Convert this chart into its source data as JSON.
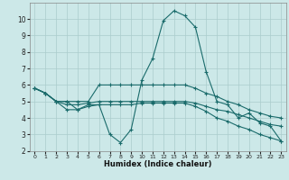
{
  "xlabel": "Humidex (Indice chaleur)",
  "xlim": [
    -0.5,
    23.5
  ],
  "ylim": [
    2,
    11
  ],
  "yticks": [
    2,
    3,
    4,
    5,
    6,
    7,
    8,
    9,
    10
  ],
  "xticks": [
    0,
    1,
    2,
    3,
    4,
    5,
    6,
    7,
    8,
    9,
    10,
    11,
    12,
    13,
    14,
    15,
    16,
    17,
    18,
    19,
    20,
    21,
    22,
    23
  ],
  "background_color": "#cce8e8",
  "grid_color": "#aacccc",
  "line_color": "#1a6b6b",
  "curves": {
    "peaked": {
      "x": [
        0,
        1,
        2,
        3,
        4,
        5,
        6,
        7,
        8,
        9,
        10,
        11,
        12,
        13,
        14,
        15,
        16,
        17,
        18,
        19,
        20,
        21,
        22,
        23
      ],
      "y": [
        5.8,
        5.5,
        5.0,
        5.0,
        4.5,
        4.8,
        4.8,
        3.0,
        2.5,
        3.3,
        6.3,
        7.6,
        9.9,
        10.5,
        10.2,
        9.5,
        6.8,
        5.0,
        4.8,
        4.0,
        4.3,
        3.7,
        3.5,
        2.6
      ]
    },
    "flat_top": {
      "x": [
        0,
        1,
        2,
        3,
        4,
        5,
        6,
        7,
        8,
        9,
        10,
        11,
        12,
        13,
        14,
        15,
        16,
        17,
        18,
        19,
        20,
        21,
        22,
        23
      ],
      "y": [
        5.8,
        5.5,
        5.0,
        5.0,
        5.0,
        5.0,
        6.0,
        6.0,
        6.0,
        6.0,
        6.0,
        6.0,
        6.0,
        6.0,
        6.0,
        5.8,
        5.5,
        5.3,
        5.0,
        4.8,
        4.5,
        4.3,
        4.1,
        4.0
      ]
    },
    "flat_mid": {
      "x": [
        0,
        1,
        2,
        3,
        4,
        5,
        6,
        7,
        8,
        9,
        10,
        11,
        12,
        13,
        14,
        15,
        16,
        17,
        18,
        19,
        20,
        21,
        22,
        23
      ],
      "y": [
        5.8,
        5.5,
        5.0,
        4.8,
        4.8,
        4.9,
        5.0,
        5.0,
        5.0,
        5.0,
        5.0,
        5.0,
        5.0,
        5.0,
        5.0,
        4.9,
        4.7,
        4.5,
        4.4,
        4.2,
        4.0,
        3.8,
        3.6,
        3.5
      ]
    },
    "declining": {
      "x": [
        0,
        1,
        2,
        3,
        4,
        5,
        6,
        7,
        8,
        9,
        10,
        11,
        12,
        13,
        14,
        15,
        16,
        17,
        18,
        19,
        20,
        21,
        22,
        23
      ],
      "y": [
        5.8,
        5.5,
        5.0,
        4.5,
        4.5,
        4.7,
        4.8,
        4.8,
        4.8,
        4.8,
        4.9,
        4.9,
        4.9,
        4.9,
        4.9,
        4.7,
        4.4,
        4.0,
        3.8,
        3.5,
        3.3,
        3.0,
        2.8,
        2.6
      ]
    }
  }
}
